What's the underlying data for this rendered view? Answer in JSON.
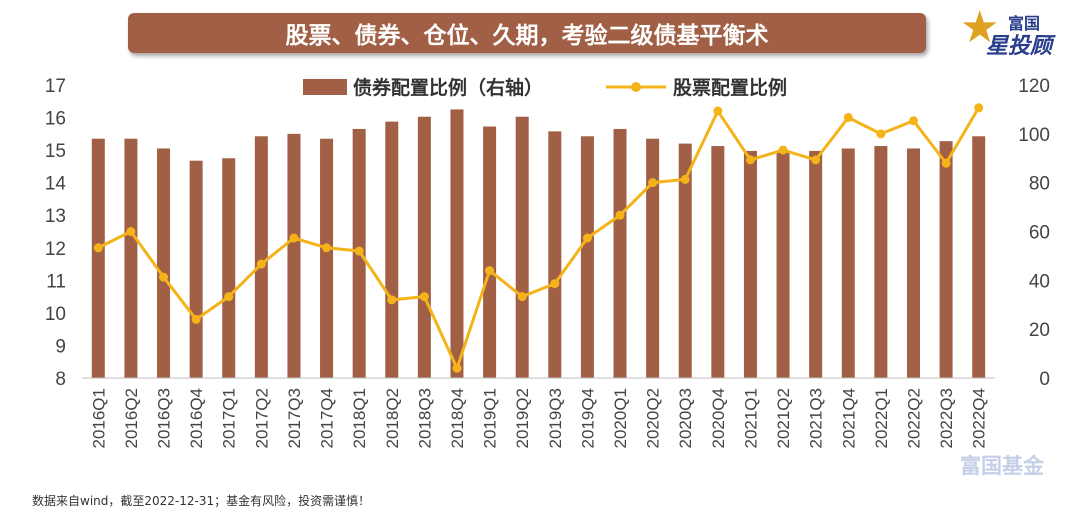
{
  "title": "股票、债券、仓位、久期，考验二级债基平衡术",
  "brand": {
    "top": "富国",
    "main": "星投顾",
    "watermark": "富国基金"
  },
  "footer": "数据来自wind，截至2022-12-31；基金有风险，投资需谨慎！",
  "colors": {
    "bar": "#a15f45",
    "line": "#f5b31a",
    "axis_text": "#444444",
    "banner": "#a15f45"
  },
  "chart_data": {
    "type": "bar+line",
    "categories": [
      "2016Q1",
      "2016Q2",
      "2016Q3",
      "2016Q4",
      "2017Q1",
      "2017Q2",
      "2017Q3",
      "2017Q4",
      "2018Q1",
      "2018Q2",
      "2018Q3",
      "2018Q4",
      "2019Q1",
      "2019Q2",
      "2019Q3",
      "2019Q4",
      "2020Q1",
      "2020Q2",
      "2020Q3",
      "2020Q4",
      "2021Q1",
      "2021Q2",
      "2021Q3",
      "2021Q4",
      "2022Q1",
      "2022Q2",
      "2022Q3",
      "2022Q4"
    ],
    "series": [
      {
        "name": "债券配置比例（右轴）",
        "type": "bar",
        "axis": "right",
        "values": [
          98,
          98,
          94,
          89,
          90,
          99,
          100,
          98,
          102,
          105,
          107,
          110,
          103,
          107,
          101,
          99,
          102,
          98,
          96,
          95,
          93,
          93,
          93,
          94,
          95,
          94,
          97,
          99
        ]
      },
      {
        "name": "股票配置比例",
        "type": "line",
        "axis": "left",
        "values": [
          12.0,
          12.5,
          11.1,
          9.8,
          10.5,
          11.5,
          12.3,
          12.0,
          11.9,
          10.4,
          10.5,
          8.3,
          11.3,
          10.5,
          10.9,
          12.3,
          13.0,
          14.0,
          14.1,
          16.2,
          14.7,
          15.0,
          14.7,
          16.0,
          15.5,
          15.9,
          14.6,
          16.3
        ]
      }
    ],
    "yleft": {
      "ticks": [
        "8",
        "9",
        "10",
        "11",
        "12",
        "13",
        "14",
        "15",
        "16",
        "17"
      ],
      "lim": [
        8,
        17
      ]
    },
    "yright": {
      "ticks": [
        "0",
        "20",
        "40",
        "60",
        "80",
        "100",
        "120"
      ],
      "lim": [
        0,
        120
      ]
    },
    "legend_position": "top-center",
    "grid": false
  }
}
